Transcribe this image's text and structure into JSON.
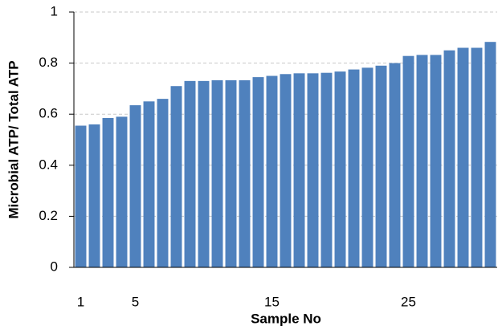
{
  "chart_data": {
    "type": "bar",
    "x_label": "Sample No",
    "y_label": "Microbial ATP/ Total ATP",
    "categories": [
      1,
      null,
      null,
      null,
      5,
      null,
      null,
      null,
      null,
      null,
      null,
      null,
      null,
      null,
      15,
      null,
      null,
      null,
      null,
      null,
      null,
      null,
      null,
      null,
      25,
      null,
      null,
      null,
      null,
      null,
      null
    ],
    "values": [
      0.555,
      0.56,
      0.585,
      0.59,
      0.635,
      0.65,
      0.66,
      0.71,
      0.73,
      0.73,
      0.733,
      0.733,
      0.733,
      0.745,
      0.75,
      0.757,
      0.76,
      0.76,
      0.762,
      0.767,
      0.775,
      0.782,
      0.79,
      0.8,
      0.828,
      0.832,
      0.832,
      0.85,
      0.86,
      0.86,
      0.883
    ],
    "color": "#4f81bd",
    "ylim": [
      0,
      1
    ],
    "yticks": [
      0,
      0.2,
      0.4,
      0.6,
      0.8,
      1
    ],
    "grid": true
  }
}
